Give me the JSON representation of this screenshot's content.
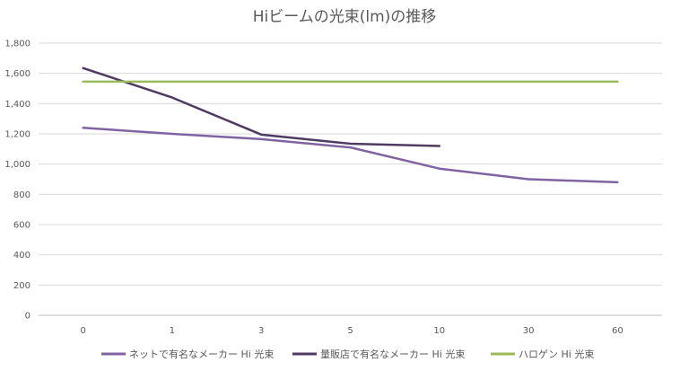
{
  "chart_data": {
    "type": "line",
    "title": "Hiビームの光束(lm)の推移",
    "categories": [
      "0",
      "1",
      "3",
      "5",
      "10",
      "30",
      "60"
    ],
    "y_ticks": [
      "0",
      "200",
      "400",
      "600",
      "800",
      "1,000",
      "1,200",
      "1,400",
      "1,600",
      "1,800"
    ],
    "ylim": [
      0,
      1800
    ],
    "grid": true,
    "legend_position": "bottom",
    "series": [
      {
        "name": "ネットで有名なメーカー Hi 光束",
        "color": "#8064a2",
        "values": [
          1240,
          1200,
          1165,
          1110,
          970,
          900,
          880
        ]
      },
      {
        "name": "量販店で有名なメーカー Hi 光束",
        "color": "#4f3b62",
        "values": [
          1635,
          1440,
          1195,
          1135,
          1120,
          null,
          null
        ]
      },
      {
        "name": "ハロゲン Hi 光束",
        "color": "#9bbb59",
        "values": [
          1545,
          1545,
          1545,
          1545,
          1545,
          1545,
          1545
        ]
      }
    ]
  }
}
